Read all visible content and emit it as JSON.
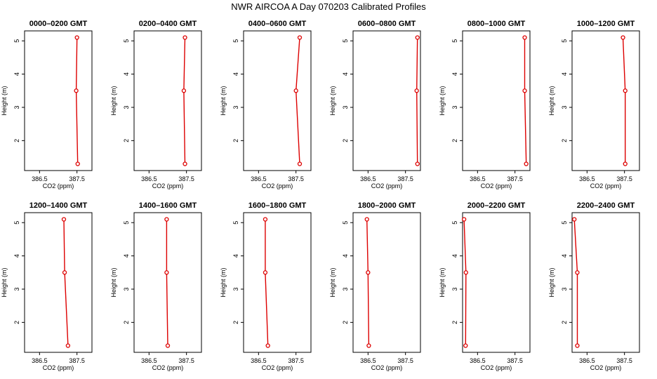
{
  "title": "NWR AIRCOA A  Day 070203  Calibrated Profiles",
  "colors": {
    "line": "#dd0000",
    "axis": "#000000",
    "background": "#ffffff"
  },
  "chart_data": [
    {
      "type": "line",
      "title": "0000–0200 GMT",
      "xlabel": "CO2 (ppm)",
      "ylabel": "Height (m)",
      "xlim": [
        386.1,
        387.9
      ],
      "ylim": [
        1.1,
        5.3
      ],
      "xticks": [
        "386.5",
        "387.5"
      ],
      "yticks": [
        "2",
        "3",
        "4",
        "5"
      ],
      "series": [
        {
          "x": [
            387.52,
            387.48,
            387.5
          ],
          "y": [
            1.3,
            3.5,
            5.1
          ]
        }
      ]
    },
    {
      "type": "line",
      "title": "0200–0400 GMT",
      "xlabel": "CO2 (ppm)",
      "ylabel": "Height (m)",
      "xlim": [
        386.1,
        387.9
      ],
      "ylim": [
        1.1,
        5.3
      ],
      "xticks": [
        "386.5",
        "387.5"
      ],
      "yticks": [
        "2",
        "3",
        "4",
        "5"
      ],
      "series": [
        {
          "x": [
            387.46,
            387.43,
            387.46
          ],
          "y": [
            1.3,
            3.5,
            5.1
          ]
        }
      ]
    },
    {
      "type": "line",
      "title": "0400–0600 GMT",
      "xlabel": "CO2 (ppm)",
      "ylabel": "Height (m)",
      "xlim": [
        386.1,
        387.9
      ],
      "ylim": [
        1.1,
        5.3
      ],
      "xticks": [
        "386.5",
        "387.5"
      ],
      "yticks": [
        "2",
        "3",
        "4",
        "5"
      ],
      "series": [
        {
          "x": [
            387.6,
            387.5,
            387.6
          ],
          "y": [
            1.3,
            3.5,
            5.1
          ]
        }
      ]
    },
    {
      "type": "line",
      "title": "0600–0800 GMT",
      "xlabel": "CO2 (ppm)",
      "ylabel": "Height (m)",
      "xlim": [
        386.1,
        387.9
      ],
      "ylim": [
        1.1,
        5.3
      ],
      "xticks": [
        "386.5",
        "387.5"
      ],
      "yticks": [
        "2",
        "3",
        "4",
        "5"
      ],
      "series": [
        {
          "x": [
            387.82,
            387.8,
            387.82
          ],
          "y": [
            1.3,
            3.5,
            5.1
          ]
        }
      ]
    },
    {
      "type": "line",
      "title": "0800–1000 GMT",
      "xlabel": "CO2 (ppm)",
      "ylabel": "Height (m)",
      "xlim": [
        386.1,
        387.9
      ],
      "ylim": [
        1.1,
        5.3
      ],
      "xticks": [
        "386.5",
        "387.5"
      ],
      "yticks": [
        "2",
        "3",
        "4",
        "5"
      ],
      "series": [
        {
          "x": [
            387.8,
            387.76,
            387.76
          ],
          "y": [
            1.3,
            3.5,
            5.1
          ]
        }
      ]
    },
    {
      "type": "line",
      "title": "1000–1200 GMT",
      "xlabel": "CO2 (ppm)",
      "ylabel": "Height (m)",
      "xlim": [
        386.1,
        387.9
      ],
      "ylim": [
        1.1,
        5.3
      ],
      "xticks": [
        "386.5",
        "387.5"
      ],
      "yticks": [
        "2",
        "3",
        "4",
        "5"
      ],
      "series": [
        {
          "x": [
            387.52,
            387.52,
            387.46
          ],
          "y": [
            1.3,
            3.5,
            5.1
          ]
        }
      ]
    },
    {
      "type": "line",
      "title": "1200–1400 GMT",
      "xlabel": "CO2 (ppm)",
      "ylabel": "Height (m)",
      "xlim": [
        386.1,
        387.9
      ],
      "ylim": [
        1.1,
        5.3
      ],
      "xticks": [
        "386.5",
        "387.5"
      ],
      "yticks": [
        "2",
        "3",
        "4",
        "5"
      ],
      "series": [
        {
          "x": [
            387.26,
            387.17,
            387.15
          ],
          "y": [
            1.3,
            3.5,
            5.1
          ]
        }
      ]
    },
    {
      "type": "line",
      "title": "1400–1600 GMT",
      "xlabel": "CO2 (ppm)",
      "ylabel": "Height (m)",
      "xlim": [
        386.1,
        387.9
      ],
      "ylim": [
        1.1,
        5.3
      ],
      "xticks": [
        "386.5",
        "387.5"
      ],
      "yticks": [
        "2",
        "3",
        "4",
        "5"
      ],
      "series": [
        {
          "x": [
            387.0,
            386.97,
            386.97
          ],
          "y": [
            1.3,
            3.5,
            5.1
          ]
        }
      ]
    },
    {
      "type": "line",
      "title": "1600–1800 GMT",
      "xlabel": "CO2 (ppm)",
      "ylabel": "Height (m)",
      "xlim": [
        386.1,
        387.9
      ],
      "ylim": [
        1.1,
        5.3
      ],
      "xticks": [
        "386.5",
        "387.5"
      ],
      "yticks": [
        "2",
        "3",
        "4",
        "5"
      ],
      "series": [
        {
          "x": [
            386.75,
            386.68,
            386.68
          ],
          "y": [
            1.3,
            3.5,
            5.1
          ]
        }
      ]
    },
    {
      "type": "line",
      "title": "1800–2000 GMT",
      "xlabel": "CO2 (ppm)",
      "ylabel": "Height (m)",
      "xlim": [
        386.1,
        387.9
      ],
      "ylim": [
        1.1,
        5.3
      ],
      "xticks": [
        "386.5",
        "387.5"
      ],
      "yticks": [
        "2",
        "3",
        "4",
        "5"
      ],
      "series": [
        {
          "x": [
            386.52,
            386.5,
            386.47
          ],
          "y": [
            1.3,
            3.5,
            5.1
          ]
        }
      ]
    },
    {
      "type": "line",
      "title": "2000–2200 GMT",
      "xlabel": "CO2 (ppm)",
      "ylabel": "Height (m)",
      "xlim": [
        386.1,
        387.9
      ],
      "ylim": [
        1.1,
        5.3
      ],
      "xticks": [
        "386.5",
        "387.5"
      ],
      "yticks": [
        "2",
        "3",
        "4",
        "5"
      ],
      "series": [
        {
          "x": [
            386.18,
            386.19,
            386.14
          ],
          "y": [
            1.3,
            3.5,
            5.1
          ]
        }
      ]
    },
    {
      "type": "line",
      "title": "2200–2400 GMT",
      "xlabel": "CO2 (ppm)",
      "ylabel": "Height (m)",
      "xlim": [
        386.1,
        387.9
      ],
      "ylim": [
        1.1,
        5.3
      ],
      "xticks": [
        "386.5",
        "387.5"
      ],
      "yticks": [
        "2",
        "3",
        "4",
        "5"
      ],
      "series": [
        {
          "x": [
            386.24,
            386.24,
            386.16
          ],
          "y": [
            1.3,
            3.5,
            5.1
          ]
        }
      ]
    }
  ]
}
